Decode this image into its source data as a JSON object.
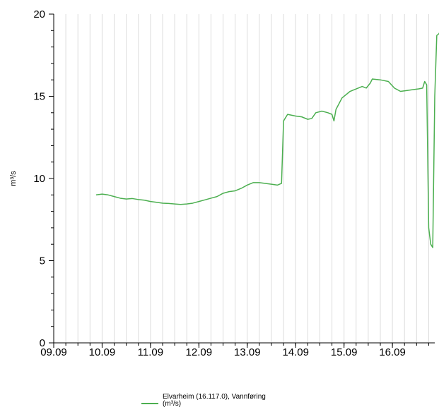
{
  "chart_data": {
    "type": "line",
    "title": "",
    "xlabel": "",
    "ylabel": "m³/s",
    "ylim": [
      0,
      20
    ],
    "xlim": [
      "2016-09-09 00:00",
      "2016-09-16 21:00"
    ],
    "x_ticks": [
      "09.09",
      "10.09",
      "11.09",
      "12.09",
      "13.09",
      "14.09",
      "15.09",
      "16.09"
    ],
    "y_ticks": [
      "0",
      "5",
      "10",
      "15",
      "20"
    ],
    "grid": true,
    "legend_position": "bottom",
    "legend": {
      "line1": "Elvarheim (16.117.0), Vannføring",
      "line2": "(m³/s)",
      "color": "#4caf50"
    },
    "series": [
      {
        "name": "Elvarheim (16.117.0), Vannføring (m³/s)",
        "color": "#4caf50",
        "points": [
          [
            "2016-09-09 21:00",
            9.0
          ],
          [
            "2016-09-10 00:00",
            9.05
          ],
          [
            "2016-09-10 03:00",
            9.0
          ],
          [
            "2016-09-10 06:00",
            8.9
          ],
          [
            "2016-09-10 09:00",
            8.8
          ],
          [
            "2016-09-10 12:00",
            8.75
          ],
          [
            "2016-09-10 15:00",
            8.78
          ],
          [
            "2016-09-10 18:00",
            8.72
          ],
          [
            "2016-09-10 21:00",
            8.68
          ],
          [
            "2016-09-11 00:00",
            8.6
          ],
          [
            "2016-09-11 03:00",
            8.55
          ],
          [
            "2016-09-11 06:00",
            8.5
          ],
          [
            "2016-09-11 09:00",
            8.48
          ],
          [
            "2016-09-11 12:00",
            8.45
          ],
          [
            "2016-09-11 15:00",
            8.42
          ],
          [
            "2016-09-11 18:00",
            8.45
          ],
          [
            "2016-09-11 21:00",
            8.5
          ],
          [
            "2016-09-12 00:00",
            8.6
          ],
          [
            "2016-09-12 03:00",
            8.7
          ],
          [
            "2016-09-12 06:00",
            8.8
          ],
          [
            "2016-09-12 09:00",
            8.9
          ],
          [
            "2016-09-12 12:00",
            9.1
          ],
          [
            "2016-09-12 15:00",
            9.2
          ],
          [
            "2016-09-12 18:00",
            9.25
          ],
          [
            "2016-09-12 21:00",
            9.4
          ],
          [
            "2016-09-13 00:00",
            9.6
          ],
          [
            "2016-09-13 03:00",
            9.75
          ],
          [
            "2016-09-13 06:00",
            9.75
          ],
          [
            "2016-09-13 09:00",
            9.7
          ],
          [
            "2016-09-13 12:00",
            9.65
          ],
          [
            "2016-09-13 15:00",
            9.6
          ],
          [
            "2016-09-13 17:00",
            9.7
          ],
          [
            "2016-09-13 18:00",
            13.5
          ],
          [
            "2016-09-13 20:00",
            13.9
          ],
          [
            "2016-09-14 00:00",
            13.8
          ],
          [
            "2016-09-14 03:00",
            13.75
          ],
          [
            "2016-09-14 06:00",
            13.6
          ],
          [
            "2016-09-14 08:00",
            13.65
          ],
          [
            "2016-09-14 10:00",
            14.0
          ],
          [
            "2016-09-14 13:00",
            14.1
          ],
          [
            "2016-09-14 16:00",
            14.0
          ],
          [
            "2016-09-14 18:00",
            13.9
          ],
          [
            "2016-09-14 19:00",
            13.5
          ],
          [
            "2016-09-14 20:00",
            14.2
          ],
          [
            "2016-09-14 23:00",
            14.9
          ],
          [
            "2016-09-15 03:00",
            15.3
          ],
          [
            "2016-09-15 06:00",
            15.45
          ],
          [
            "2016-09-15 09:00",
            15.6
          ],
          [
            "2016-09-15 11:00",
            15.5
          ],
          [
            "2016-09-15 13:00",
            15.8
          ],
          [
            "2016-09-15 14:00",
            16.05
          ],
          [
            "2016-09-15 18:00",
            16.0
          ],
          [
            "2016-09-15 22:00",
            15.9
          ],
          [
            "2016-09-16 01:00",
            15.5
          ],
          [
            "2016-09-16 04:00",
            15.3
          ],
          [
            "2016-09-16 07:00",
            15.35
          ],
          [
            "2016-09-16 10:00",
            15.4
          ],
          [
            "2016-09-16 13:00",
            15.45
          ],
          [
            "2016-09-16 15:00",
            15.5
          ],
          [
            "2016-09-16 16:00",
            15.9
          ],
          [
            "2016-09-16 17:00",
            15.7
          ],
          [
            "2016-09-16 18:00",
            7.0
          ],
          [
            "2016-09-16 19:00",
            6.0
          ],
          [
            "2016-09-16 20:00",
            5.8
          ],
          [
            "2016-09-16 21:00",
            15.0
          ],
          [
            "2016-09-16 22:00",
            18.7
          ],
          [
            "2016-09-16 23:00",
            18.8
          ],
          [
            "2016-09-17 00:00",
            19.0
          ]
        ]
      }
    ]
  }
}
